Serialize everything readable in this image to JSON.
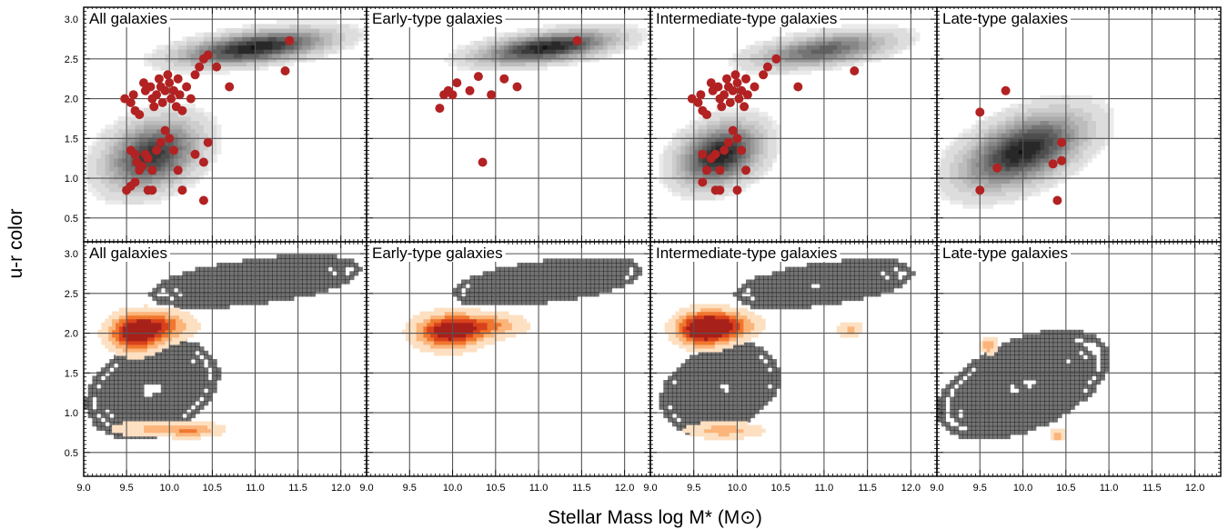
{
  "figure": {
    "ylabel": "u-r color",
    "xlabel": "Stellar Mass log M* (M⊙)"
  },
  "chart_data": [
    {
      "type": "scatter",
      "row": "top",
      "title": "All galaxies",
      "xlim": [
        9.0,
        12.3
      ],
      "ylim": [
        0.2,
        3.15
      ],
      "xticks": [
        "9.0",
        "9.5",
        "10.0",
        "10.5",
        "11.0",
        "11.5",
        "12.0"
      ],
      "yticks": [
        "3.0",
        "2.5",
        "2.0",
        "1.5",
        "1.0",
        "0.5"
      ],
      "density": {
        "style": "filled",
        "peaks": [
          {
            "x": 11.0,
            "y": 2.65,
            "sx": 0.55,
            "sy": 0.14,
            "r": 0.5,
            "w": 1.0
          },
          {
            "x": 9.8,
            "y": 1.3,
            "sx": 0.35,
            "sy": 0.28,
            "r": 0.3,
            "w": 0.9
          }
        ]
      },
      "points": [
        [
          9.48,
          2.0
        ],
        [
          9.55,
          1.95
        ],
        [
          9.58,
          2.05
        ],
        [
          9.6,
          1.85
        ],
        [
          9.65,
          1.8
        ],
        [
          9.7,
          2.2
        ],
        [
          9.72,
          2.1
        ],
        [
          9.78,
          2.15
        ],
        [
          9.8,
          2.0
        ],
        [
          9.82,
          1.9
        ],
        [
          9.85,
          2.05
        ],
        [
          9.88,
          2.25
        ],
        [
          9.9,
          2.15
        ],
        [
          9.92,
          1.95
        ],
        [
          9.95,
          2.1
        ],
        [
          9.98,
          2.3
        ],
        [
          10.0,
          2.2
        ],
        [
          10.02,
          2.0
        ],
        [
          10.05,
          2.1
        ],
        [
          10.08,
          1.9
        ],
        [
          10.1,
          2.25
        ],
        [
          10.12,
          2.05
        ],
        [
          10.15,
          1.85
        ],
        [
          10.2,
          2.15
        ],
        [
          10.25,
          2.0
        ],
        [
          10.3,
          2.3
        ],
        [
          10.35,
          2.4
        ],
        [
          10.4,
          2.5
        ],
        [
          10.45,
          2.55
        ],
        [
          10.55,
          2.4
        ],
        [
          10.7,
          2.15
        ],
        [
          11.4,
          2.73
        ],
        [
          11.35,
          2.35
        ],
        [
          9.55,
          1.35
        ],
        [
          9.6,
          1.3
        ],
        [
          9.62,
          1.2
        ],
        [
          9.65,
          1.1
        ],
        [
          9.68,
          1.15
        ],
        [
          9.72,
          1.3
        ],
        [
          9.75,
          1.25
        ],
        [
          9.8,
          1.1
        ],
        [
          9.85,
          1.35
        ],
        [
          9.9,
          1.45
        ],
        [
          9.95,
          1.6
        ],
        [
          10.0,
          1.5
        ],
        [
          10.05,
          1.35
        ],
        [
          10.1,
          1.1
        ],
        [
          10.3,
          1.3
        ],
        [
          10.4,
          1.2
        ],
        [
          10.45,
          1.45
        ],
        [
          9.5,
          0.85
        ],
        [
          9.55,
          0.9
        ],
        [
          9.6,
          0.95
        ],
        [
          9.75,
          0.85
        ],
        [
          9.8,
          0.85
        ],
        [
          10.15,
          0.85
        ],
        [
          10.4,
          0.72
        ]
      ]
    },
    {
      "type": "scatter",
      "row": "top",
      "title": "Early-type galaxies",
      "xlim": [
        9.0,
        12.3
      ],
      "ylim": [
        0.2,
        3.15
      ],
      "xticks": [
        "9.0",
        "9.5",
        "10.0",
        "10.5",
        "11.0",
        "11.5",
        "12.0"
      ],
      "yticks": [
        "3.0",
        "2.5",
        "2.0",
        "1.5",
        "1.0",
        "0.5"
      ],
      "density": {
        "style": "filled",
        "peaks": [
          {
            "x": 11.1,
            "y": 2.65,
            "sx": 0.5,
            "sy": 0.13,
            "r": 0.5,
            "w": 1.0
          }
        ]
      },
      "points": [
        [
          9.85,
          1.88
        ],
        [
          9.9,
          2.05
        ],
        [
          9.95,
          2.1
        ],
        [
          10.0,
          2.05
        ],
        [
          10.05,
          2.2
        ],
        [
          10.2,
          2.1
        ],
        [
          10.3,
          2.28
        ],
        [
          10.45,
          2.05
        ],
        [
          10.6,
          2.25
        ],
        [
          10.75,
          2.15
        ],
        [
          11.45,
          2.73
        ],
        [
          10.35,
          1.2
        ]
      ]
    },
    {
      "type": "scatter",
      "row": "top",
      "title": "Intermediate-type galaxies",
      "xlim": [
        9.0,
        12.3
      ],
      "ylim": [
        0.2,
        3.15
      ],
      "xticks": [
        "9.0",
        "9.5",
        "10.0",
        "10.5",
        "11.0",
        "11.5",
        "12.0"
      ],
      "yticks": [
        "3.0",
        "2.5",
        "2.0",
        "1.5",
        "1.0",
        "0.5"
      ],
      "density": {
        "style": "filled",
        "peaks": [
          {
            "x": 11.0,
            "y": 2.62,
            "sx": 0.5,
            "sy": 0.14,
            "r": 0.5,
            "w": 0.7
          },
          {
            "x": 9.8,
            "y": 1.3,
            "sx": 0.3,
            "sy": 0.25,
            "r": 0.3,
            "w": 1.0
          }
        ]
      },
      "points": [
        [
          9.48,
          2.0
        ],
        [
          9.55,
          1.95
        ],
        [
          9.58,
          2.05
        ],
        [
          9.6,
          1.85
        ],
        [
          9.65,
          1.8
        ],
        [
          9.7,
          2.2
        ],
        [
          9.72,
          2.1
        ],
        [
          9.78,
          2.15
        ],
        [
          9.8,
          2.0
        ],
        [
          9.82,
          1.9
        ],
        [
          9.85,
          2.05
        ],
        [
          9.88,
          2.25
        ],
        [
          9.9,
          2.15
        ],
        [
          9.92,
          1.95
        ],
        [
          9.95,
          2.1
        ],
        [
          9.98,
          2.3
        ],
        [
          10.0,
          2.2
        ],
        [
          10.02,
          2.0
        ],
        [
          10.05,
          2.1
        ],
        [
          10.08,
          1.9
        ],
        [
          10.1,
          2.25
        ],
        [
          10.12,
          2.05
        ],
        [
          10.2,
          2.15
        ],
        [
          10.3,
          2.3
        ],
        [
          10.35,
          2.4
        ],
        [
          10.45,
          2.5
        ],
        [
          10.7,
          2.15
        ],
        [
          11.35,
          2.35
        ],
        [
          9.6,
          1.3
        ],
        [
          9.65,
          1.1
        ],
        [
          9.7,
          1.25
        ],
        [
          9.75,
          1.3
        ],
        [
          9.8,
          1.1
        ],
        [
          9.85,
          1.35
        ],
        [
          9.9,
          1.45
        ],
        [
          9.95,
          1.6
        ],
        [
          10.0,
          1.5
        ],
        [
          10.05,
          1.35
        ],
        [
          10.1,
          1.1
        ],
        [
          9.6,
          0.95
        ],
        [
          9.75,
          0.85
        ],
        [
          9.8,
          0.85
        ],
        [
          10.0,
          0.85
        ]
      ]
    },
    {
      "type": "scatter",
      "row": "top",
      "title": "Late-type galaxies",
      "xlim": [
        9.0,
        12.3
      ],
      "ylim": [
        0.2,
        3.15
      ],
      "xticks": [
        "9.0",
        "9.5",
        "10.0",
        "10.5",
        "11.0",
        "11.5",
        "12.0"
      ],
      "yticks": [
        "3.0",
        "2.5",
        "2.0",
        "1.5",
        "1.0",
        "0.5"
      ],
      "density": {
        "style": "filled",
        "peaks": [
          {
            "x": 10.0,
            "y": 1.35,
            "sx": 0.45,
            "sy": 0.3,
            "r": 0.5,
            "w": 1.0
          }
        ]
      },
      "points": [
        [
          9.5,
          1.83
        ],
        [
          9.8,
          2.1
        ],
        [
          9.7,
          1.13
        ],
        [
          9.5,
          0.85
        ],
        [
          10.35,
          1.18
        ],
        [
          10.45,
          1.45
        ],
        [
          10.45,
          1.22
        ],
        [
          10.4,
          0.72
        ]
      ]
    },
    {
      "type": "heatmap",
      "row": "bottom",
      "title": "All galaxies",
      "xlim": [
        9.0,
        12.3
      ],
      "ylim": [
        0.2,
        3.15
      ],
      "xticks": [
        "9.0",
        "9.5",
        "10.0",
        "10.5",
        "11.0",
        "11.5",
        "12.0"
      ],
      "yticks": [
        "3.0",
        "2.5",
        "2.0",
        "1.5",
        "1.0",
        "0.5"
      ],
      "density": {
        "style": "lines",
        "peaks": [
          {
            "x": 11.0,
            "y": 2.65,
            "sx": 0.55,
            "sy": 0.14,
            "r": 0.5,
            "w": 1.0
          },
          {
            "x": 9.8,
            "y": 1.3,
            "sx": 0.35,
            "sy": 0.28,
            "r": 0.3,
            "w": 0.9
          }
        ]
      },
      "heat": [
        {
          "x": 9.6,
          "y": 2.0,
          "sx": 0.2,
          "sy": 0.15,
          "w": 1.0
        },
        {
          "x": 9.9,
          "y": 2.1,
          "sx": 0.25,
          "sy": 0.12,
          "w": 0.6
        },
        {
          "x": 9.9,
          "y": 0.8,
          "sx": 0.4,
          "sy": 0.07,
          "w": 0.35
        },
        {
          "x": 10.3,
          "y": 0.78,
          "sx": 0.2,
          "sy": 0.06,
          "w": 0.3
        }
      ]
    },
    {
      "type": "heatmap",
      "row": "bottom",
      "title": "Early-type galaxies",
      "xlim": [
        9.0,
        12.3
      ],
      "ylim": [
        0.2,
        3.15
      ],
      "xticks": [
        "9.0",
        "9.5",
        "10.0",
        "10.5",
        "11.0",
        "11.5",
        "12.0"
      ],
      "yticks": [
        "3.0",
        "2.5",
        "2.0",
        "1.5",
        "1.0",
        "0.5"
      ],
      "density": {
        "style": "lines",
        "peaks": [
          {
            "x": 11.1,
            "y": 2.65,
            "sx": 0.5,
            "sy": 0.13,
            "r": 0.5,
            "w": 1.0
          }
        ]
      },
      "heat": [
        {
          "x": 9.95,
          "y": 2.02,
          "sx": 0.25,
          "sy": 0.14,
          "w": 1.0
        },
        {
          "x": 10.4,
          "y": 2.1,
          "sx": 0.3,
          "sy": 0.1,
          "w": 0.5
        }
      ]
    },
    {
      "type": "heatmap",
      "row": "bottom",
      "title": "Intermediate-type galaxies",
      "xlim": [
        9.0,
        12.3
      ],
      "ylim": [
        0.2,
        3.15
      ],
      "xticks": [
        "9.0",
        "9.5",
        "10.0",
        "10.5",
        "11.0",
        "11.5",
        "12.0"
      ],
      "yticks": [
        "3.0",
        "2.5",
        "2.0",
        "1.5",
        "1.0",
        "0.5"
      ],
      "density": {
        "style": "lines",
        "peaks": [
          {
            "x": 11.0,
            "y": 2.62,
            "sx": 0.5,
            "sy": 0.14,
            "r": 0.5,
            "w": 0.7
          },
          {
            "x": 9.8,
            "y": 1.3,
            "sx": 0.3,
            "sy": 0.25,
            "r": 0.3,
            "w": 1.0
          }
        ]
      },
      "heat": [
        {
          "x": 9.6,
          "y": 2.05,
          "sx": 0.2,
          "sy": 0.14,
          "w": 1.0
        },
        {
          "x": 9.85,
          "y": 2.1,
          "sx": 0.25,
          "sy": 0.12,
          "w": 0.7
        },
        {
          "x": 11.3,
          "y": 2.05,
          "sx": 0.1,
          "sy": 0.07,
          "w": 0.35
        },
        {
          "x": 9.85,
          "y": 0.78,
          "sx": 0.3,
          "sy": 0.07,
          "w": 0.4
        }
      ]
    },
    {
      "type": "heatmap",
      "row": "bottom",
      "title": "Late-type galaxies",
      "xlim": [
        9.0,
        12.3
      ],
      "ylim": [
        0.2,
        3.15
      ],
      "xticks": [
        "9.0",
        "9.5",
        "10.0",
        "10.5",
        "11.0",
        "11.5",
        "12.0"
      ],
      "yticks": [
        "3.0",
        "2.5",
        "2.0",
        "1.5",
        "1.0",
        "0.5"
      ],
      "density": {
        "style": "lines",
        "peaks": [
          {
            "x": 10.0,
            "y": 1.35,
            "sx": 0.45,
            "sy": 0.3,
            "r": 0.5,
            "w": 1.0
          }
        ]
      },
      "heat": [
        {
          "x": 9.6,
          "y": 1.85,
          "sx": 0.07,
          "sy": 0.07,
          "w": 0.45
        },
        {
          "x": 10.4,
          "y": 0.72,
          "sx": 0.06,
          "sy": 0.05,
          "w": 0.45
        }
      ]
    }
  ],
  "colors": {
    "point": "#b22222",
    "heat": [
      "#fde0c2",
      "#fbb47a",
      "#f0772e",
      "#d9411c",
      "#a8201a"
    ],
    "fill_light": "#e6e6e6",
    "fill_dark": "#222222"
  }
}
